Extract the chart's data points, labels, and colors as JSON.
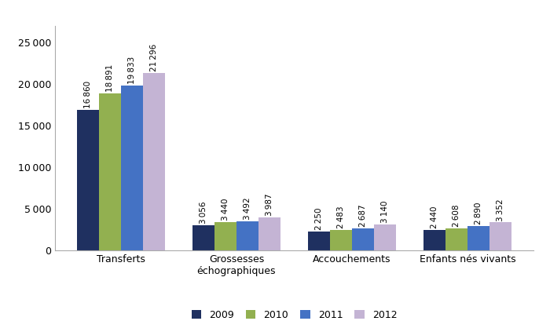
{
  "categories": [
    "Transferts",
    "Grossesses\néchographiques",
    "Accouchements",
    "Enfants nés vivants"
  ],
  "series": {
    "2009": [
      16860,
      3056,
      2250,
      2440
    ],
    "2010": [
      18891,
      3440,
      2483,
      2608
    ],
    "2011": [
      19833,
      3492,
      2687,
      2890
    ],
    "2012": [
      21296,
      3987,
      3140,
      3352
    ]
  },
  "years": [
    "2009",
    "2010",
    "2011",
    "2012"
  ],
  "colors": {
    "2009": "#1F3060",
    "2010": "#92B050",
    "2011": "#4472C4",
    "2012": "#C4B4D4"
  },
  "ylim": [
    0,
    27000
  ],
  "yticks": [
    0,
    5000,
    10000,
    15000,
    20000,
    25000
  ],
  "bar_width": 0.19,
  "label_fontsize": 7.5,
  "legend_fontsize": 9,
  "axis_label_fontsize": 9,
  "tick_fontsize": 9
}
